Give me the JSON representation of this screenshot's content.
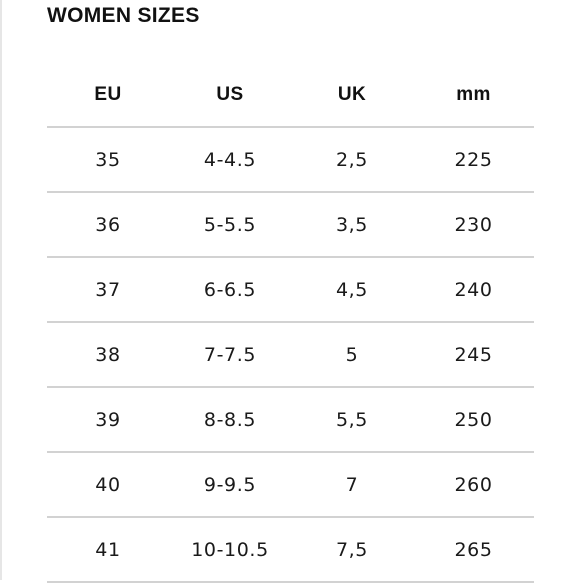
{
  "title": "WOMEN SIZES",
  "columns": [
    "EU",
    "US",
    "UK",
    "mm"
  ],
  "rows": [
    [
      "35",
      "4-4.5",
      "2,5",
      "225"
    ],
    [
      "36",
      "5-5.5",
      "3,5",
      "230"
    ],
    [
      "37",
      "6-6.5",
      "4,5",
      "240"
    ],
    [
      "38",
      "7-7.5",
      "5",
      "245"
    ],
    [
      "39",
      "8-8.5",
      "5,5",
      "250"
    ],
    [
      "40",
      "9-9.5",
      "7",
      "260"
    ],
    [
      "41",
      "10-10.5",
      "7,5",
      "265"
    ]
  ]
}
